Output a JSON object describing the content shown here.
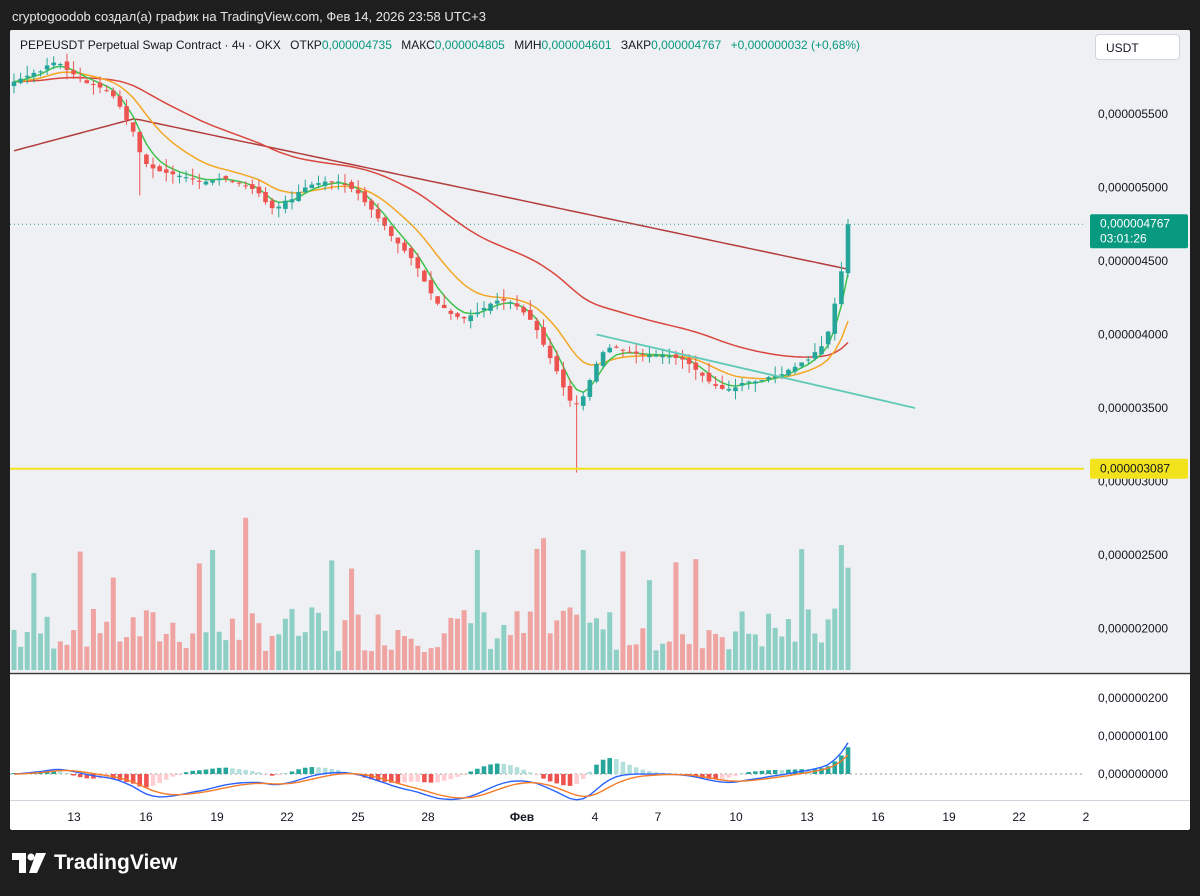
{
  "header": {
    "caption": "cryptogoodob создал(а) график на TradingView.com, Фев 14, 2026 23:58 UTC+3"
  },
  "legend": {
    "symbol": "PEPEUSDT Perpetual Swap Contract · 4ч · OKX",
    "open_label": "ОТКР",
    "open_value": "0,000004735",
    "high_label": "МАКС",
    "high_value": "0,000004805",
    "low_label": "МИН",
    "low_value": "0,000004601",
    "close_label": "ЗАКР",
    "close_value": "0,000004767",
    "change": "+0,000000032 (+0,68%)"
  },
  "currency_button": "USDT",
  "price_tag": {
    "value": "0,000004767",
    "countdown": "03:01:26"
  },
  "level_tag": "0,000003087",
  "brand": "TradingView",
  "colors": {
    "up": "#26a69a",
    "down": "#ef5350",
    "volume_up": "#8dcfc4",
    "volume_down": "#f0a4a2",
    "ema_fast": "#3fc24a",
    "ema_mid": "#f5a623",
    "ma_slow": "#d9463e",
    "ma_slowest": "#b33c3c",
    "trendline": "#5fc9b7",
    "level": "#f2e31c",
    "macd_line": "#2962ff",
    "signal_line": "#f57c28"
  },
  "chart_data": {
    "type": "candlestick",
    "symbol": "PEPEUSDT",
    "interval": "4h",
    "price_axis": {
      "ticks": [
        "0,000005500",
        "0,000005000",
        "0,000004500",
        "0,000004000",
        "0,000003500",
        "0,000003000",
        "0,000002500",
        "0,000002000"
      ],
      "tick_values": [
        5.5e-06,
        5e-06,
        4.5e-06,
        4e-06,
        3.5e-06,
        3e-06,
        2.5e-06,
        2e-06
      ]
    },
    "time_axis": [
      "13",
      "16",
      "19",
      "22",
      "25",
      "28",
      "Фев",
      "4",
      "7",
      "10",
      "13",
      "16",
      "19",
      "22",
      "2"
    ],
    "macd_axis": [
      "0,000000200",
      "0,000000100",
      "0,000000000"
    ],
    "closes": [
      5.72,
      5.74,
      5.76,
      5.78,
      5.79,
      5.83,
      5.85,
      5.84,
      5.8,
      5.77,
      5.74,
      5.71,
      5.7,
      5.68,
      5.66,
      5.62,
      5.55,
      5.46,
      5.38,
      5.24,
      5.16,
      5.13,
      5.11,
      5.1,
      5.09,
      5.08,
      5.07,
      5.06,
      5.04,
      5.04,
      5.05,
      5.06,
      5.06,
      5.04,
      5.03,
      5.01,
      4.99,
      4.96,
      4.9,
      4.86,
      4.87,
      4.91,
      4.92,
      4.97,
      5,
      5.02,
      5.03,
      5.04,
      5.04,
      5.04,
      5.02,
      4.99,
      4.96,
      4.9,
      4.85,
      4.79,
      4.74,
      4.67,
      4.62,
      4.57,
      4.52,
      4.45,
      4.36,
      4.28,
      4.21,
      4.18,
      4.14,
      4.12,
      4.11,
      4.13,
      4.15,
      4.18,
      4.21,
      4.23,
      4.23,
      4.22,
      4.19,
      4.15,
      4.1,
      4.03,
      3.93,
      3.84,
      3.75,
      3.64,
      3.55,
      3.53,
      3.58,
      3.69,
      3.8,
      3.88,
      3.91,
      3.91,
      3.89,
      3.88,
      3.87,
      3.86,
      3.86,
      3.86,
      3.86,
      3.85,
      3.84,
      3.83,
      3.8,
      3.76,
      3.72,
      3.68,
      3.65,
      3.63,
      3.63,
      3.64,
      3.67,
      3.68,
      3.68,
      3.69,
      3.71,
      3.72,
      3.73,
      3.76,
      3.78,
      3.81,
      3.83,
      3.88,
      3.92,
      4.02,
      4.21,
      4.43,
      4.75
    ],
    "level": 3.087,
    "trendline": [
      [
        55,
        4.0
      ],
      [
        72,
        3.5
      ]
    ],
    "moving_averages": [
      "ema_fast",
      "ema_mid",
      "ma_slow",
      "ma_slowest"
    ],
    "volume_max_label": "",
    "macd_range": [
      -2.5e-08,
      2.1e-07
    ]
  }
}
